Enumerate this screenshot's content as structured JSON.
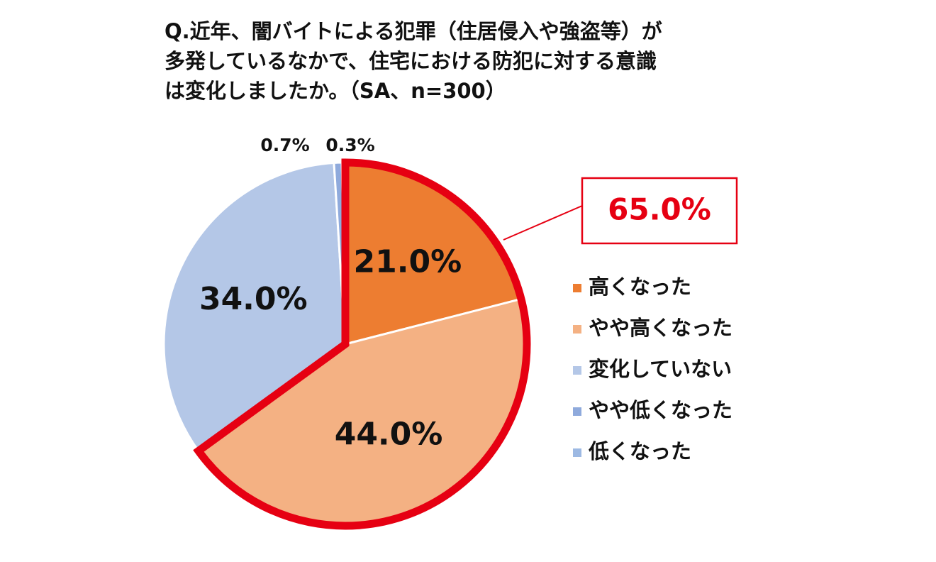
{
  "chart_data": {
    "type": "pie",
    "title": [
      "Q.近年、闇バイトによる犯罪（住居侵入や強盗等）が",
      "多発しているなかで、住宅における防犯に対する意識",
      "は変化しましたか。（SA、n=300）"
    ],
    "categories": [
      "高くなった",
      "やや高くなった",
      "変化していない",
      "やや低くなった",
      "低くなった"
    ],
    "values": [
      21.0,
      44.0,
      34.0,
      0.7,
      0.3
    ],
    "value_labels": [
      "21.0%",
      "44.0%",
      "34.0%",
      "0.7%",
      "0.3%"
    ],
    "colors": [
      "#ED7D31",
      "#F4B183",
      "#B4C7E7",
      "#8FAADC",
      "#9DB9E3"
    ],
    "annotation": "65.0%",
    "highlight_color": "#E60012"
  }
}
